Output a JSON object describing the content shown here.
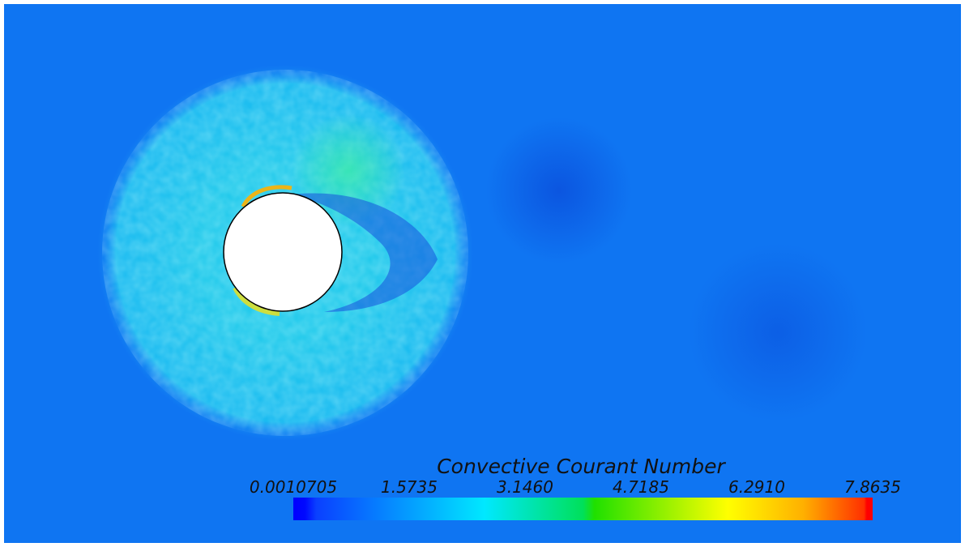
{
  "colorbar": {
    "title": "Convective Courant Number",
    "tick_labels": [
      "0.0010705",
      "1.5735",
      "3.1460",
      "4.7185",
      "6.2910",
      "7.8635"
    ]
  }
}
